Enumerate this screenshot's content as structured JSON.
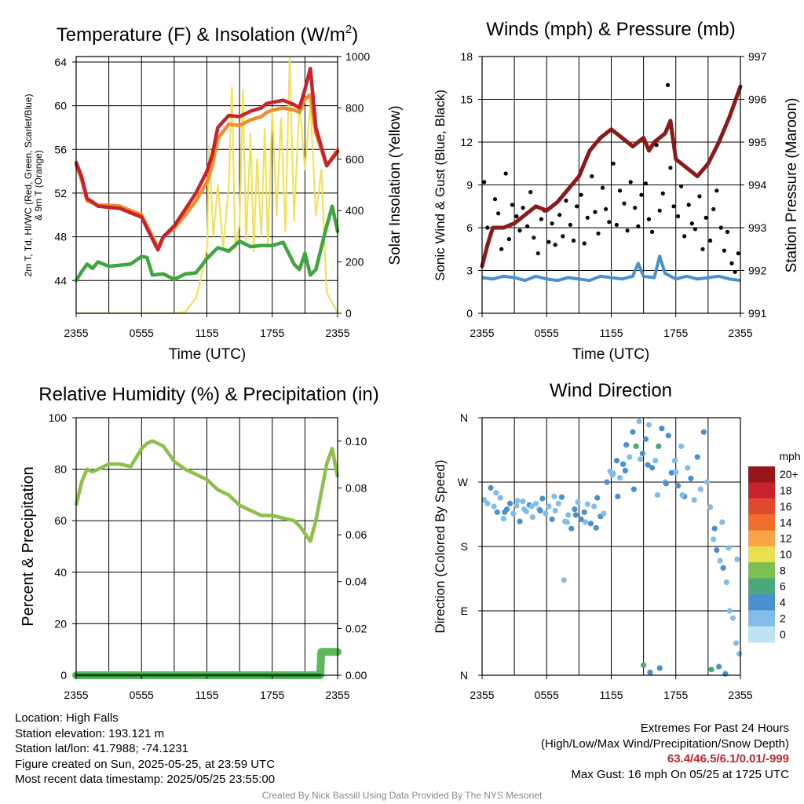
{
  "chart_data": [
    {
      "type": "line",
      "title": "Temperature (F) & Insolation (W/m²)",
      "xlabel": "Time (UTC)",
      "ylabel": "2m T, Td, HI/WC (Red, Green, Scarlet/Blue) & 9m T (Orange)",
      "ylabel_right": "Solar Insolation (Yellow)",
      "x_ticks": [
        "2355",
        "0555",
        "1155",
        "1755",
        "2355"
      ],
      "x_range_hours": [
        0,
        24
      ],
      "ylim": [
        41,
        64.5
      ],
      "yticks": [
        44,
        48,
        52,
        56,
        60,
        64
      ],
      "ylim_right": [
        0,
        1000
      ],
      "yticks_right": [
        0,
        200,
        400,
        600,
        800,
        1000
      ],
      "series": [
        {
          "name": "2m T",
          "color": "#c8232c",
          "axis": "left",
          "x": [
            0,
            0.5,
            1,
            1.5,
            2,
            3,
            4,
            5,
            6,
            7,
            7.5,
            8,
            9,
            10,
            11,
            12,
            12.5,
            13,
            14,
            15,
            16,
            17,
            17.5,
            18,
            19,
            20,
            20.5,
            21,
            21.5,
            22,
            23,
            24
          ],
          "values": [
            54.8,
            53.5,
            51.5,
            51.2,
            50.8,
            50.7,
            50.6,
            50.2,
            49.8,
            47.8,
            46.8,
            48,
            49,
            50.5,
            52,
            54,
            55.5,
            58,
            59.1,
            59,
            59.5,
            59.8,
            60.2,
            60.3,
            60.5,
            60.1,
            59.8,
            61.5,
            63.4,
            58,
            54.5,
            55.8
          ]
        },
        {
          "name": "9m T",
          "color": "#f28c28",
          "axis": "left",
          "x": [
            0,
            0.5,
            1,
            1.5,
            2,
            3,
            4,
            5,
            6,
            7,
            7.5,
            8,
            9,
            10,
            11,
            12,
            12.5,
            13,
            14,
            15,
            16,
            17,
            17.5,
            18,
            19,
            20,
            20.5,
            21,
            21.5,
            22,
            23,
            24
          ],
          "values": [
            54.6,
            53.2,
            51.3,
            51.1,
            50.9,
            50.9,
            50.8,
            50.4,
            50,
            48,
            47,
            48,
            48.8,
            50,
            51.3,
            53,
            54.5,
            57,
            58.3,
            58.2,
            58.7,
            59,
            59.4,
            59.6,
            59.8,
            59.6,
            59.4,
            60.6,
            61,
            57.5,
            54.5,
            56
          ]
        },
        {
          "name": "Td",
          "color": "#3fa53f",
          "axis": "left",
          "x": [
            0,
            0.5,
            1,
            1.5,
            2,
            3,
            4,
            5,
            6,
            6.5,
            7,
            8,
            9,
            10,
            11,
            12,
            13,
            14,
            15,
            16,
            17,
            18,
            19,
            20,
            20.5,
            21,
            21.5,
            22,
            23,
            23.5,
            24
          ],
          "values": [
            44,
            44.8,
            45.5,
            45.1,
            45.7,
            45.3,
            45.4,
            45.5,
            46.2,
            46.1,
            44.5,
            44.6,
            44.1,
            44.6,
            44.7,
            46,
            47,
            46.7,
            47.6,
            47.1,
            47.2,
            47.2,
            47.5,
            45.5,
            45,
            46.5,
            44.5,
            45,
            49,
            50.8,
            48.5
          ]
        },
        {
          "name": "Solar Insolation",
          "color": "#f5e050",
          "axis": "right",
          "x": [
            0,
            9,
            10,
            11,
            11.3,
            12,
            12.2,
            12.6,
            13,
            13.5,
            14,
            14.3,
            14.6,
            15,
            15.3,
            15.6,
            16,
            16.3,
            16.6,
            17,
            17.3,
            17.6,
            18,
            18.4,
            18.8,
            19.2,
            19.6,
            20,
            20.5,
            21,
            21.5,
            22,
            22.5,
            23,
            24
          ],
          "values": [
            0,
            0,
            5,
            60,
            110,
            250,
            650,
            300,
            500,
            250,
            500,
            880,
            250,
            350,
            870,
            280,
            700,
            240,
            600,
            300,
            720,
            260,
            800,
            380,
            760,
            320,
            1000,
            360,
            820,
            560,
            820,
            380,
            560,
            80,
            0
          ]
        }
      ]
    },
    {
      "type": "scatter",
      "title": "Winds (mph) & Pressure (mb)",
      "xlabel": "Time (UTC)",
      "ylabel": "Sonic Wind & Gust (Blue, Black)",
      "ylabel_right": "Station Pressure (Maroon)",
      "x_ticks": [
        "2355",
        "0555",
        "1155",
        "1755",
        "2355"
      ],
      "x_range_hours": [
        0,
        24
      ],
      "ylim": [
        0,
        18
      ],
      "yticks": [
        0,
        3,
        6,
        9,
        12,
        15,
        18
      ],
      "ylim_right": [
        991,
        997
      ],
      "yticks_right": [
        991,
        992,
        993,
        994,
        995,
        996,
        997
      ],
      "series": [
        {
          "name": "Station Pressure",
          "color": "#8b1a1a",
          "axis": "right",
          "x": [
            0,
            0.5,
            1,
            2,
            3,
            4,
            5,
            6,
            7,
            8,
            9,
            10,
            11,
            12,
            13,
            14,
            15,
            15.5,
            16,
            17,
            17.5,
            18,
            19,
            20,
            21,
            22,
            23,
            24
          ],
          "values": [
            992.1,
            992.6,
            993,
            993,
            993.1,
            993.3,
            993.5,
            993.4,
            993.6,
            993.9,
            994.2,
            994.8,
            995.1,
            995.3,
            995.1,
            994.9,
            995.1,
            994.8,
            995,
            995.2,
            995.5,
            994.6,
            994.4,
            994.2,
            994.5,
            995,
            995.6,
            996.3
          ]
        },
        {
          "name": "Sonic Wind",
          "color": "#4a90cf",
          "axis": "left",
          "x": [
            0,
            1,
            2,
            3,
            4,
            5,
            6,
            7,
            8,
            9,
            10,
            11,
            12,
            13,
            14,
            14.5,
            15,
            16,
            16.5,
            17,
            18,
            19,
            20,
            21,
            22,
            23,
            24
          ],
          "values": [
            2.5,
            2.4,
            2.6,
            2.5,
            2.3,
            2.6,
            2.4,
            2.3,
            2.5,
            2.4,
            2.3,
            2.6,
            2.5,
            2.4,
            2.6,
            3.5,
            2.6,
            2.5,
            4,
            2.8,
            2.4,
            2.6,
            2.4,
            2.5,
            2.6,
            2.4,
            2.3
          ]
        }
      ],
      "gust_points": {
        "name": "Gust",
        "color": "#000000",
        "x": [
          0.2,
          0.5,
          0.8,
          1.2,
          1.5,
          1.8,
          2.2,
          2.5,
          2.8,
          3.2,
          3.5,
          3.8,
          4.2,
          4.5,
          4.8,
          5.2,
          5.5,
          5.8,
          6.2,
          6.5,
          6.8,
          7.2,
          7.5,
          7.8,
          8.2,
          8.5,
          8.8,
          9.2,
          9.5,
          9.8,
          10.2,
          10.5,
          10.8,
          11.2,
          11.5,
          11.8,
          12.2,
          12.5,
          12.8,
          13.2,
          13.5,
          13.8,
          14.2,
          14.5,
          14.8,
          15.2,
          15.5,
          15.8,
          16.2,
          16.5,
          16.8,
          17.25,
          17.5,
          17.8,
          18.2,
          18.5,
          18.8,
          19.2,
          19.5,
          19.8,
          20.2,
          20.5,
          20.8,
          21.2,
          21.5,
          21.8,
          22.2,
          22.5,
          22.8,
          23.2,
          23.5,
          23.8
        ],
        "values": [
          9.2,
          6,
          5.5,
          8,
          7,
          4.5,
          9.8,
          5.2,
          7.6,
          6.8,
          5.8,
          7.4,
          6.1,
          8.5,
          5.3,
          4.2,
          6.6,
          7.2,
          5,
          6.3,
          4.8,
          6.9,
          5.4,
          7.9,
          6.2,
          5.1,
          7.5,
          8.3,
          4.9,
          6.7,
          9.6,
          7.1,
          5.6,
          8.8,
          7.3,
          6.4,
          10.5,
          6.2,
          8.6,
          7.7,
          5.8,
          9.2,
          7.4,
          6.1,
          8.3,
          9.1,
          6.6,
          5.7,
          11.8,
          7.2,
          8.4,
          16,
          10.2,
          7.5,
          6.8,
          8.9,
          5.4,
          7.6,
          6.3,
          5.9,
          8.2,
          4.5,
          6.7,
          5.1,
          7.3,
          8.6,
          6,
          4.4,
          5.7,
          3.5,
          2.9,
          4.2
        ]
      }
    },
    {
      "type": "line",
      "title": "Relative Humidity (%) & Precipitation (in)",
      "ylabel": "Percent & Precipitation",
      "x_ticks": [
        "2355",
        "0555",
        "1155",
        "1755",
        "2355"
      ],
      "x_range_hours": [
        0,
        24
      ],
      "ylim": [
        0,
        100
      ],
      "yticks": [
        0,
        20,
        40,
        60,
        80,
        100
      ],
      "ylim_right": [
        0,
        0.11
      ],
      "yticks_right": [
        "0.00",
        "0.02",
        "0.04",
        "0.06",
        "0.08",
        "0.10"
      ],
      "series": [
        {
          "name": "Relative Humidity",
          "color": "#8cc04a",
          "axis": "left",
          "x": [
            0,
            0.5,
            1,
            1.5,
            2,
            3,
            4,
            5,
            6,
            6.5,
            7,
            8,
            9,
            10,
            11,
            12,
            13,
            14,
            15,
            16,
            17,
            18,
            19,
            20,
            20.5,
            21,
            21.5,
            22,
            23,
            23.5,
            24
          ],
          "values": [
            66,
            75,
            80,
            79,
            80,
            82,
            82,
            81,
            88,
            90,
            91,
            89,
            83,
            80,
            78,
            76,
            72,
            70,
            66,
            64,
            62,
            62,
            61,
            60,
            58,
            55,
            52,
            60,
            82,
            88,
            77
          ]
        },
        {
          "name": "Precipitation",
          "color": "#2d8b3a",
          "axis": "right",
          "x": [
            0,
            22.4,
            22.5,
            24
          ],
          "values": [
            0,
            0,
            0.01,
            0.01
          ]
        }
      ]
    },
    {
      "type": "scatter",
      "title": "Wind Direction",
      "ylabel": "Direction (Colored By Speed)",
      "x_ticks": [
        "2355",
        "0555",
        "1155",
        "1755",
        "2355"
      ],
      "x_range_hours": [
        0,
        24
      ],
      "y_ticks": [
        "N",
        "E",
        "S",
        "W",
        "N"
      ],
      "ylim_degrees": [
        0,
        360
      ],
      "legend_title": "mph",
      "legend_labels": [
        "0",
        "2",
        "4",
        "6",
        "8",
        "10",
        "12",
        "14",
        "16",
        "18",
        "20+"
      ],
      "legend_colors": [
        "#bde3f5",
        "#80bde8",
        "#4a8fcf",
        "#4aa87a",
        "#7cc04d",
        "#e8e050",
        "#f6a445",
        "#f06d2c",
        "#e04a2c",
        "#c8232c",
        "#98151a"
      ],
      "points_x": [
        0.2,
        0.5,
        0.8,
        1.1,
        1.4,
        1.7,
        2.0,
        2.3,
        2.6,
        2.9,
        3.2,
        3.5,
        3.8,
        4.1,
        4.4,
        4.7,
        5.0,
        5.3,
        5.6,
        5.9,
        6.2,
        6.5,
        6.8,
        7.1,
        7.4,
        7.7,
        8.0,
        8.3,
        8.6,
        8.9,
        9.2,
        9.5,
        9.8,
        10.1,
        10.4,
        10.7,
        11.0,
        11.3,
        11.6,
        11.9,
        12.2,
        12.5,
        12.8,
        13.1,
        13.4,
        13.7,
        14.0,
        14.3,
        14.6,
        14.9,
        15.2,
        15.5,
        15.8,
        16.1,
        16.4,
        16.7,
        17.0,
        17.3,
        17.6,
        17.9,
        18.2,
        18.5,
        18.8,
        19.1,
        19.4,
        19.7,
        20.0,
        20.3,
        20.6,
        20.9,
        21.2,
        21.5,
        21.8,
        22.1,
        22.4,
        22.7,
        23.0,
        23.3,
        23.6,
        23.9,
        1.3,
        2.1,
        3.3,
        4.6,
        5.4,
        6.7,
        7.9,
        8.7,
        9.6,
        10.6,
        12.1,
        13.3,
        14.1,
        14.7,
        15.4,
        16.3,
        17.1,
        18.0,
        21.6,
        22.3,
        22.9,
        23.7,
        15.0,
        15.6,
        16.5,
        21.3,
        22.0,
        22.6,
        3.9,
        12.6,
        18.6,
        7.6
      ],
      "points_deg": [
        245,
        240,
        262,
        236,
        228,
        248,
        219,
        232,
        240,
        226,
        237,
        215,
        243,
        229,
        238,
        221,
        240,
        232,
        247,
        226,
        236,
        218,
        230,
        240,
        249,
        215,
        224,
        205,
        232,
        242,
        218,
        228,
        239,
        212,
        236,
        248,
        222,
        226,
        270,
        285,
        282,
        300,
        276,
        295,
        322,
        305,
        340,
        320,
        355,
        310,
        330,
        350,
        290,
        300,
        320,
        345,
        270,
        335,
        283,
        300,
        265,
        320,
        250,
        290,
        275,
        245,
        305,
        260,
        340,
        270,
        235,
        190,
        175,
        160,
        150,
        130,
        90,
        80,
        45,
        30,
        255,
        228,
        244,
        236,
        230,
        250,
        214,
        224,
        214,
        206,
        280,
        286,
        260,
        302,
        294,
        252,
        268,
        284,
        205,
        214,
        178,
        162,
        14,
        4,
        10,
        8,
        12,
        2,
        232,
        250,
        252,
        133
      ],
      "points_speed": [
        2,
        2,
        3,
        2,
        3,
        2,
        2,
        3,
        3,
        2,
        2,
        3,
        2,
        2,
        3,
        2,
        2,
        2,
        3,
        2,
        2,
        3,
        2,
        2,
        3,
        2,
        2,
        3,
        3,
        2,
        4,
        3,
        2,
        3,
        2,
        3,
        4,
        2,
        3,
        2,
        2,
        3,
        2,
        4,
        3,
        2,
        3,
        5,
        2,
        3,
        4,
        2,
        3,
        2,
        5,
        3,
        2,
        4,
        3,
        2,
        3,
        2,
        3,
        2,
        4,
        2,
        3,
        2,
        3,
        1,
        2,
        2,
        3,
        2,
        3,
        2,
        2,
        2,
        2,
        2,
        2,
        3,
        2,
        2,
        3,
        2,
        2,
        3,
        2,
        3,
        2,
        4,
        3,
        2,
        3,
        2,
        4,
        2,
        3,
        2,
        2,
        2,
        6,
        3,
        4,
        5,
        3,
        3,
        2,
        3,
        1,
        1
      ]
    }
  ],
  "info": {
    "location": "Location: High Falls",
    "elevation": "Station elevation: 193.121 m",
    "latlon": "Station lat/lon: 41.7988; -74.1231",
    "created": "Figure created on Sun, 2025-05-25, at 23:59 UTC",
    "recent": "Most recent data timestamp: 2025/05/25 23:55:00",
    "extremes_title": "Extremes For Past 24 Hours",
    "extremes_subtitle": "(High/Low/Max Wind/Precipitation/Snow Depth)",
    "extremes_values": "63.4/46.5/6.1/0.01/-999",
    "max_gust": "Max Gust: 16 mph On 05/25 at 1725 UTC",
    "credit": "Created By Nick Bassill Using Data Provided By The NYS Mesonet"
  }
}
